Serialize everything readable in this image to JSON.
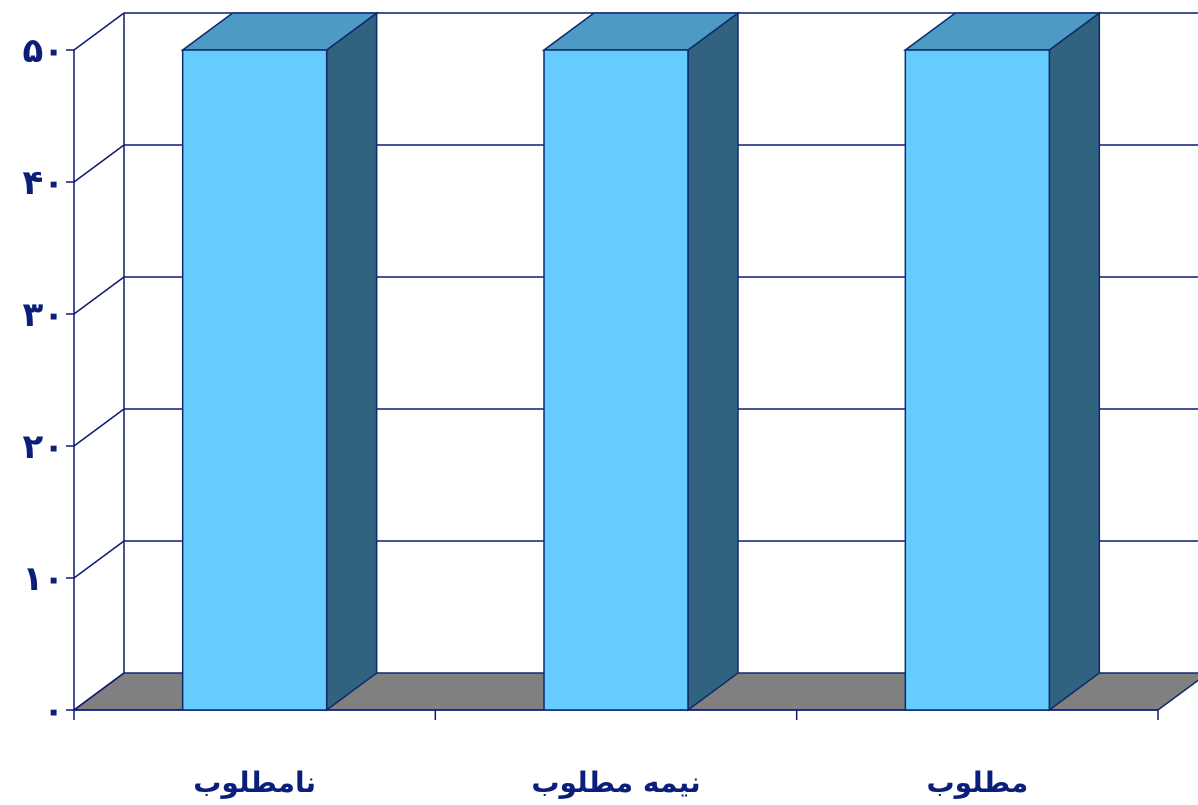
{
  "chart_data": {
    "type": "bar",
    "title": "",
    "xlabel": "",
    "ylabel": "",
    "categories": [
      "نامطلوب",
      "نیمه مطلوب",
      "مطلوب"
    ],
    "values": [
      50,
      50,
      50
    ],
    "ylim": [
      0,
      50
    ],
    "yticks": [
      0,
      10,
      20,
      30,
      40,
      50
    ],
    "ytick_labels": [
      "٠",
      "١٠",
      "٢٠",
      "٣٠",
      "۴٠",
      "۵٠"
    ],
    "grid": true,
    "legend": "none",
    "three_d": true,
    "colors": {
      "bar_front": "#66ccff",
      "bar_top": "#4d9bc4",
      "bar_side": "#31627f",
      "floor": "#808080",
      "gridline": "#0d1a73",
      "outline": "#0d2a6b"
    }
  }
}
